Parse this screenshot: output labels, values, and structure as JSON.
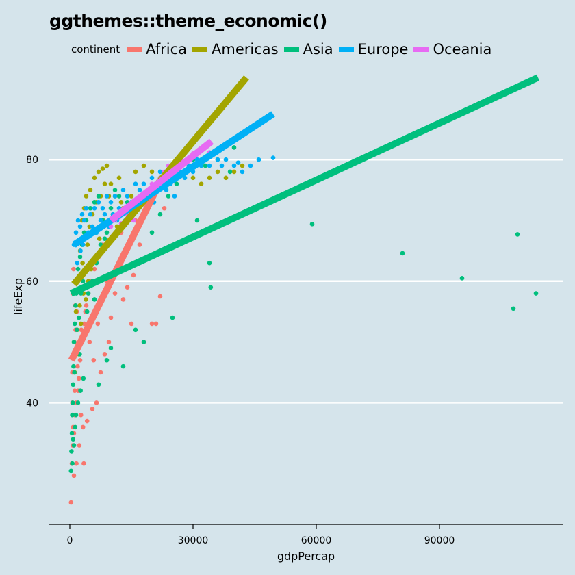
{
  "chart_data": {
    "type": "scatter",
    "title": "ggthemes::theme_economic()",
    "xlabel": "gdpPercap",
    "ylabel": "lifeExp",
    "xlim": [
      -5000,
      120000
    ],
    "ylim": [
      20,
      95
    ],
    "x_ticks": [
      0,
      30000,
      60000,
      90000
    ],
    "x_tick_labels": [
      "0",
      "30000",
      "60000",
      "90000"
    ],
    "y_ticks": [
      40,
      60,
      80
    ],
    "y_tick_labels": [
      "40",
      "60",
      "80"
    ],
    "grid": "horizontal",
    "legend": {
      "title": "continent",
      "position": "top",
      "entries": [
        "Africa",
        "Americas",
        "Asia",
        "Europe",
        "Oceania"
      ]
    },
    "colors": {
      "Africa": "#F8766D",
      "Americas": "#A3A500",
      "Asia": "#00BF7D",
      "Europe": "#00B0F6",
      "Oceania": "#E76BF3"
    },
    "trend_lines": [
      {
        "name": "Africa",
        "x": [
          400,
          21000
        ],
        "y": [
          47,
          75
        ]
      },
      {
        "name": "Americas",
        "x": [
          1000,
          43000
        ],
        "y": [
          59.5,
          93.5
        ]
      },
      {
        "name": "Asia",
        "x": [
          300,
          114000
        ],
        "y": [
          58,
          93.5
        ]
      },
      {
        "name": "Europe",
        "x": [
          1000,
          49500
        ],
        "y": [
          66,
          87.5
        ]
      },
      {
        "name": "Oceania",
        "x": [
          10000,
          34500
        ],
        "y": [
          70,
          83
        ]
      }
    ],
    "series": [
      {
        "name": "Africa",
        "points": [
          [
            300,
            23.6
          ],
          [
            500,
            30
          ],
          [
            700,
            33
          ],
          [
            1000,
            35
          ],
          [
            1200,
            38
          ],
          [
            1500,
            40
          ],
          [
            2000,
            42
          ],
          [
            600,
            45
          ],
          [
            800,
            48
          ],
          [
            1100,
            50
          ],
          [
            1400,
            52
          ],
          [
            1700,
            55
          ],
          [
            2200,
            44
          ],
          [
            2500,
            47
          ],
          [
            3000,
            50
          ],
          [
            3500,
            53
          ],
          [
            4000,
            56
          ],
          [
            4500,
            58
          ],
          [
            5000,
            60
          ],
          [
            6000,
            62
          ],
          [
            7000,
            64
          ],
          [
            8000,
            66
          ],
          [
            9000,
            60
          ],
          [
            10000,
            54
          ],
          [
            11000,
            58
          ],
          [
            12000,
            62
          ],
          [
            13000,
            57
          ],
          [
            14000,
            59
          ],
          [
            15000,
            53
          ],
          [
            16000,
            70
          ],
          [
            18000,
            50
          ],
          [
            19000,
            72
          ],
          [
            20000,
            53
          ],
          [
            21000,
            53
          ],
          [
            22000,
            57.5
          ],
          [
            23000,
            72
          ],
          [
            700,
            58
          ],
          [
            900,
            62
          ],
          [
            1300,
            56
          ],
          [
            1800,
            49
          ],
          [
            2700,
            38
          ],
          [
            3200,
            36
          ],
          [
            4200,
            37
          ],
          [
            5500,
            39
          ],
          [
            6500,
            40
          ],
          [
            7500,
            45
          ],
          [
            8500,
            48
          ],
          [
            9500,
            50
          ],
          [
            1600,
            30
          ],
          [
            3400,
            30
          ],
          [
            2300,
            33
          ],
          [
            1000,
            28
          ],
          [
            600,
            40
          ],
          [
            800,
            36
          ],
          [
            1200,
            42
          ],
          [
            1900,
            46
          ],
          [
            2800,
            52
          ],
          [
            3800,
            55
          ],
          [
            4800,
            50
          ],
          [
            5800,
            47
          ],
          [
            6800,
            53
          ],
          [
            7800,
            57
          ],
          [
            12500,
            68
          ],
          [
            15500,
            61
          ],
          [
            17000,
            66
          ]
        ]
      },
      {
        "name": "Americas",
        "points": [
          [
            1000,
            50
          ],
          [
            1500,
            55
          ],
          [
            2000,
            60
          ],
          [
            2500,
            65
          ],
          [
            3000,
            70
          ],
          [
            3500,
            72
          ],
          [
            4000,
            74
          ],
          [
            5000,
            75
          ],
          [
            6000,
            77
          ],
          [
            7000,
            78
          ],
          [
            8000,
            78.5
          ],
          [
            9000,
            79
          ],
          [
            10000,
            76
          ],
          [
            11000,
            74
          ],
          [
            12000,
            77
          ],
          [
            13000,
            72
          ],
          [
            14000,
            70
          ],
          [
            15000,
            74
          ],
          [
            16000,
            78
          ],
          [
            18000,
            79
          ],
          [
            20000,
            78
          ],
          [
            22000,
            77
          ],
          [
            24000,
            78
          ],
          [
            26000,
            79
          ],
          [
            28000,
            78
          ],
          [
            30000,
            77
          ],
          [
            32000,
            76
          ],
          [
            34000,
            77
          ],
          [
            36000,
            78
          ],
          [
            38000,
            77
          ],
          [
            40000,
            78
          ],
          [
            42000,
            79
          ],
          [
            2200,
            48
          ],
          [
            2700,
            53
          ],
          [
            3300,
            58
          ],
          [
            3800,
            62
          ],
          [
            4300,
            66
          ],
          [
            4800,
            69
          ],
          [
            5500,
            71
          ],
          [
            6500,
            73
          ],
          [
            7500,
            74
          ],
          [
            8500,
            76
          ],
          [
            9500,
            74
          ],
          [
            10500,
            71
          ],
          [
            1200,
            45
          ],
          [
            1800,
            52
          ],
          [
            2400,
            56
          ],
          [
            3100,
            63
          ],
          [
            6200,
            68
          ],
          [
            7200,
            67
          ],
          [
            8200,
            70
          ],
          [
            11500,
            69
          ],
          [
            12500,
            73
          ],
          [
            5200,
            62
          ],
          [
            4500,
            60
          ],
          [
            3900,
            57
          ]
        ]
      },
      {
        "name": "Asia",
        "points": [
          [
            300,
            28.8
          ],
          [
            400,
            32
          ],
          [
            500,
            35
          ],
          [
            600,
            38
          ],
          [
            700,
            40
          ],
          [
            800,
            43
          ],
          [
            900,
            46
          ],
          [
            1000,
            50
          ],
          [
            1200,
            53
          ],
          [
            1400,
            56
          ],
          [
            1600,
            58
          ],
          [
            1800,
            60
          ],
          [
            2000,
            62
          ],
          [
            2500,
            64
          ],
          [
            3000,
            66
          ],
          [
            3500,
            68
          ],
          [
            4000,
            70
          ],
          [
            5000,
            72
          ],
          [
            6000,
            73
          ],
          [
            7000,
            74
          ],
          [
            8000,
            70
          ],
          [
            9000,
            68
          ],
          [
            10000,
            72
          ],
          [
            11000,
            75
          ],
          [
            12000,
            74
          ],
          [
            14000,
            73
          ],
          [
            16000,
            52
          ],
          [
            18000,
            50
          ],
          [
            20000,
            68
          ],
          [
            22000,
            71
          ],
          [
            24000,
            74
          ],
          [
            25000,
            54
          ],
          [
            26000,
            76
          ],
          [
            28000,
            78
          ],
          [
            30000,
            80
          ],
          [
            31000,
            70
          ],
          [
            33000,
            79
          ],
          [
            34000,
            63
          ],
          [
            34300,
            59
          ],
          [
            36000,
            80
          ],
          [
            39000,
            78
          ],
          [
            40000,
            82
          ],
          [
            59000,
            69.4
          ],
          [
            81000,
            64.6
          ],
          [
            95500,
            60.5
          ],
          [
            108000,
            55.5
          ],
          [
            109000,
            67.7
          ],
          [
            113500,
            58
          ],
          [
            1100,
            45
          ],
          [
            1300,
            48
          ],
          [
            1700,
            52
          ],
          [
            2200,
            54
          ],
          [
            2700,
            58
          ],
          [
            3200,
            60
          ],
          [
            3700,
            62
          ],
          [
            4500,
            58
          ],
          [
            5500,
            60
          ],
          [
            6500,
            63
          ],
          [
            7500,
            66
          ],
          [
            8500,
            67
          ],
          [
            13000,
            46
          ],
          [
            10000,
            49
          ],
          [
            7000,
            43
          ],
          [
            9000,
            47
          ],
          [
            2400,
            48
          ],
          [
            4200,
            55
          ],
          [
            6000,
            57
          ],
          [
            600,
            30
          ],
          [
            800,
            34
          ],
          [
            1500,
            38
          ],
          [
            2000,
            40
          ],
          [
            2600,
            42
          ],
          [
            3300,
            44
          ],
          [
            1000,
            33
          ],
          [
            1300,
            36
          ]
        ]
      },
      {
        "name": "Europe",
        "points": [
          [
            1000,
            66
          ],
          [
            1500,
            68
          ],
          [
            2000,
            70
          ],
          [
            2500,
            69
          ],
          [
            3000,
            71
          ],
          [
            3500,
            70
          ],
          [
            4000,
            72
          ],
          [
            5000,
            71
          ],
          [
            6000,
            72
          ],
          [
            7000,
            73
          ],
          [
            8000,
            72
          ],
          [
            9000,
            74
          ],
          [
            10000,
            73
          ],
          [
            11000,
            74
          ],
          [
            12000,
            72
          ],
          [
            13000,
            75
          ],
          [
            14000,
            74
          ],
          [
            15000,
            73
          ],
          [
            16000,
            76
          ],
          [
            17000,
            75
          ],
          [
            18000,
            76
          ],
          [
            19000,
            75
          ],
          [
            20000,
            77
          ],
          [
            21000,
            76
          ],
          [
            22000,
            78
          ],
          [
            23000,
            77
          ],
          [
            24000,
            78
          ],
          [
            25000,
            77
          ],
          [
            26000,
            79
          ],
          [
            27000,
            78
          ],
          [
            28000,
            77
          ],
          [
            29000,
            79
          ],
          [
            30000,
            78
          ],
          [
            31000,
            80
          ],
          [
            32000,
            79
          ],
          [
            33000,
            80
          ],
          [
            34000,
            79
          ],
          [
            35000,
            81
          ],
          [
            36000,
            80
          ],
          [
            37000,
            79
          ],
          [
            38000,
            80
          ],
          [
            40000,
            79
          ],
          [
            41000,
            79.5
          ],
          [
            42000,
            78
          ],
          [
            44000,
            79
          ],
          [
            46000,
            80
          ],
          [
            49500,
            80.3
          ],
          [
            1200,
            60
          ],
          [
            1800,
            63
          ],
          [
            2600,
            65
          ],
          [
            3200,
            66
          ],
          [
            4500,
            68
          ],
          [
            5500,
            69
          ],
          [
            6500,
            68
          ],
          [
            7500,
            70
          ],
          [
            8500,
            71
          ],
          [
            9500,
            69
          ],
          [
            10500,
            71
          ],
          [
            11500,
            70
          ],
          [
            12500,
            71
          ],
          [
            13500,
            70
          ],
          [
            14500,
            72
          ],
          [
            15500,
            71
          ],
          [
            16500,
            73
          ],
          [
            17500,
            74
          ],
          [
            18500,
            73
          ],
          [
            19500,
            74
          ],
          [
            20500,
            73
          ],
          [
            21500,
            75
          ],
          [
            22500,
            76
          ],
          [
            23500,
            75
          ],
          [
            24500,
            76
          ],
          [
            25500,
            74
          ]
        ]
      },
      {
        "name": "Oceania",
        "points": [
          [
            10000,
            69
          ],
          [
            11000,
            70
          ],
          [
            12000,
            70.5
          ],
          [
            13000,
            71
          ],
          [
            14000,
            71
          ],
          [
            15000,
            71.5
          ],
          [
            16000,
            72
          ],
          [
            17000,
            73
          ],
          [
            18000,
            74
          ],
          [
            19000,
            74.5
          ],
          [
            20000,
            76
          ],
          [
            21000,
            76
          ],
          [
            22000,
            77
          ],
          [
            23000,
            78
          ],
          [
            24000,
            79
          ],
          [
            25000,
            79
          ],
          [
            26000,
            80
          ],
          [
            27000,
            80
          ],
          [
            28000,
            81
          ],
          [
            30000,
            81
          ],
          [
            34000,
            81.2
          ],
          [
            12500,
            69.5
          ],
          [
            15500,
            70
          ],
          [
            18500,
            72
          ]
        ]
      }
    ]
  }
}
